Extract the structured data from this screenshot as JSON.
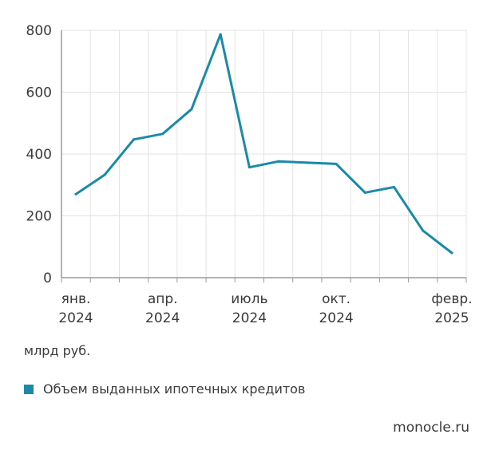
{
  "chart_data": {
    "type": "line",
    "x": [
      "янв. 2024",
      "февр. 2024",
      "март 2024",
      "апр. 2024",
      "май 2024",
      "июнь 2024",
      "июль 2024",
      "авг. 2024",
      "сент. 2024",
      "окт. 2024",
      "нояб. 2024",
      "дек. 2024",
      "янв. 2025",
      "февр. 2025"
    ],
    "series": [
      {
        "values": [
          270,
          333,
          447,
          465,
          545,
          787,
          357,
          376,
          372,
          368,
          275,
          293,
          152,
          80
        ]
      }
    ],
    "x_tick_labels": [
      {
        "index": 0,
        "line1": "янв.",
        "line2": "2024"
      },
      {
        "index": 3,
        "line1": "апр.",
        "line2": "2024"
      },
      {
        "index": 6,
        "line1": "июль",
        "line2": "2024"
      },
      {
        "index": 9,
        "line1": "окт.",
        "line2": "2024"
      },
      {
        "index": 13,
        "line1": "февр.",
        "line2": "2025"
      }
    ],
    "y_ticks": [
      0,
      200,
      400,
      600,
      800
    ],
    "ylim": [
      0,
      800
    ],
    "grid": true,
    "legend_position": "bottom-left"
  },
  "unit_label": "млрд руб.",
  "legend": {
    "label": "Объем выданных ипотечных кредитов"
  },
  "source": "monocle.ru",
  "colors": {
    "line": "#1a8aa8",
    "grid": "#e3e3e3",
    "axis": "#9a9a9a",
    "text": "#3a3a3a"
  }
}
